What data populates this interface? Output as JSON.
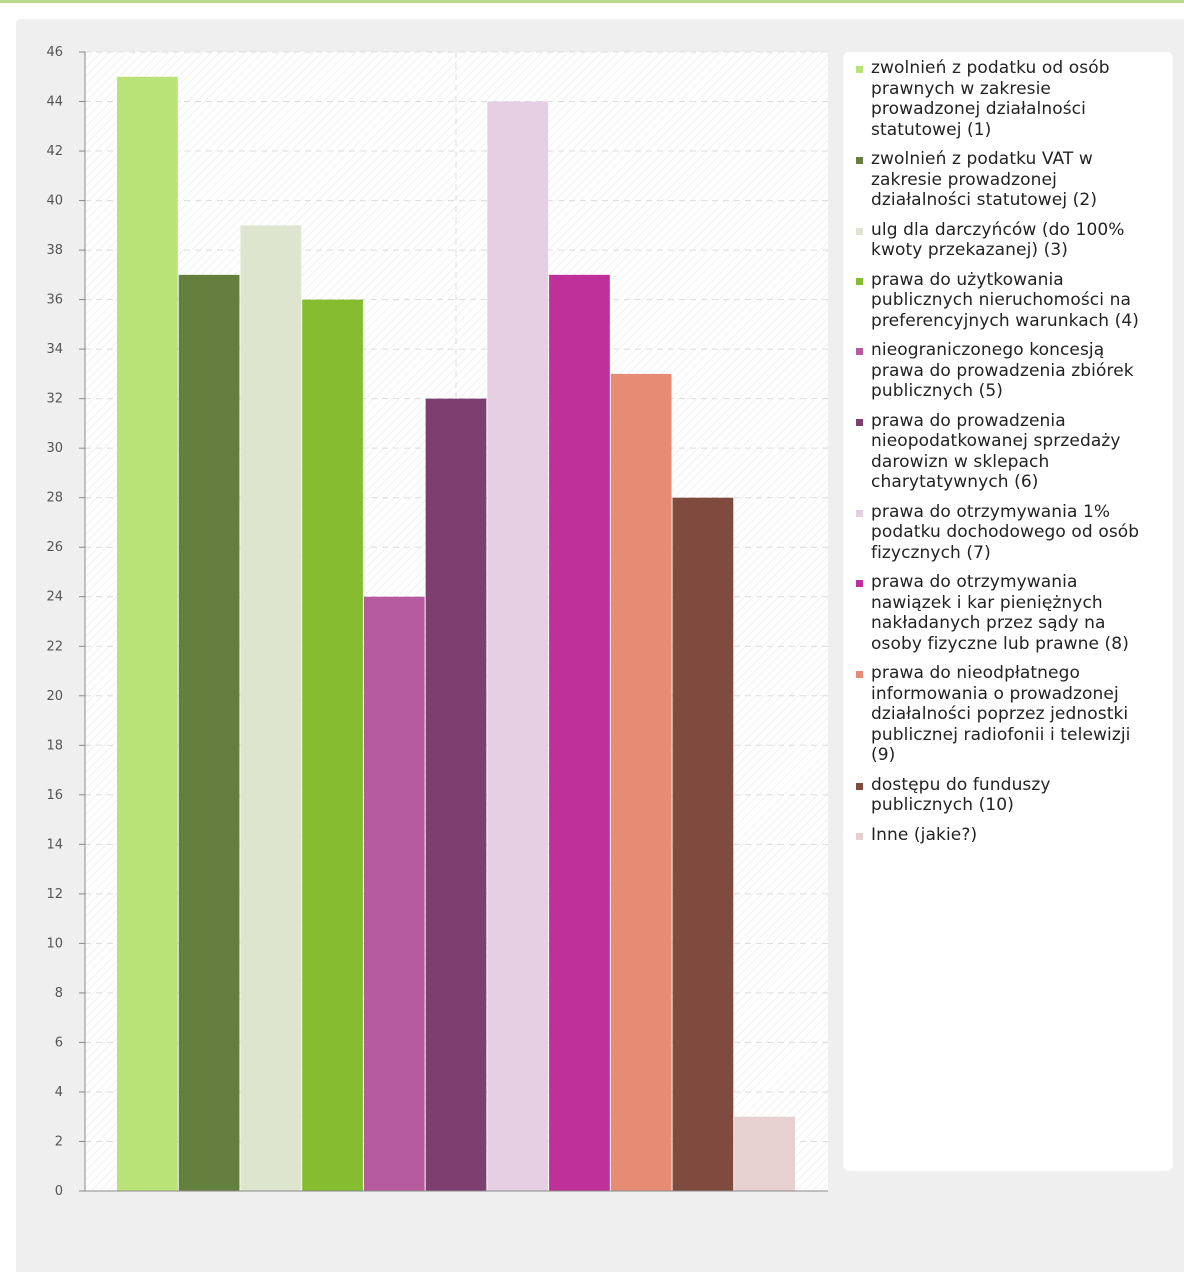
{
  "chart_data": {
    "type": "bar",
    "title": "",
    "xlabel": "",
    "ylabel": "",
    "ylim": [
      0,
      46
    ],
    "ytick_step": 2,
    "grid": true,
    "legend_position": "right",
    "categories": [
      "zwolnień z podatku od osób prawnych w zakresie prowadzonej działalności statutowej (1)",
      "zwolnień z podatku VAT w zakresie prowadzonej działalności statutowej (2)",
      "ulg dla darczyńców (do 100% kwoty przekazanej) (3)",
      "prawa do użytkowania publicznych nieruchomości na preferencyjnych warunkach (4)",
      "nieograniczonego koncesją prawa do prowadzenia zbiórek publicznych (5)",
      "prawa do prowadzenia nieopodatkowanej sprzedaży darowizn w sklepach charytatywnych (6)",
      "prawa do otrzymywania 1% podatku dochodowego od osób fizycznych (7)",
      "prawa do otrzymywania nawiązek i kar pieniężnych nakładanych przez sądy na osoby fizyczne lub prawne (8)",
      "prawa do nieodpłatnego informowania o prowadzonej działalności poprzez jednostki publicznej radiofonii i telewizji (9)",
      "dostępu do funduszy publicznych (10)",
      "Inne (jakie?)"
    ],
    "values": [
      45,
      37,
      39,
      36,
      24,
      32,
      44,
      37,
      33,
      28,
      3
    ],
    "colors": [
      "#b9e376",
      "#647f3e",
      "#dde5cf",
      "#86bd30",
      "#b75ba0",
      "#7c3f6f",
      "#e6cfe2",
      "#c0309a",
      "#e68b74",
      "#7e4b3e",
      "#e6d0d0"
    ]
  },
  "legend": {
    "items": [
      {
        "label": "zwolnień z podatku od osób prawnych w zakresie prowadzonej działalności statutowej (1)",
        "color": "#b9e376"
      },
      {
        "label": "zwolnień z podatku VAT w zakresie prowadzonej działalności statutowej (2)",
        "color": "#647f3e"
      },
      {
        "label": "ulg dla darczyńców (do 100% kwoty przekazanej) (3)",
        "color": "#dde5cf"
      },
      {
        "label": "prawa do użytkowania publicznych nieruchomości na preferencyjnych warunkach (4)",
        "color": "#86bd30"
      },
      {
        "label": "nieograniczonego koncesją prawa do prowadzenia zbiórek publicznych (5)",
        "color": "#b75ba0"
      },
      {
        "label": "prawa do prowadzenia nieopodatkowanej sprzedaży darowizn w sklepach charytatywnych (6)",
        "color": "#7c3f6f"
      },
      {
        "label": "prawa do otrzymywania 1% podatku dochodowego od osób fizycznych (7)",
        "color": "#e6cfe2"
      },
      {
        "label": "prawa do otrzymywania nawiązek i kar pieniężnych nakładanych przez sądy na osoby fizyczne lub prawne (8)",
        "color": "#c0309a"
      },
      {
        "label": "prawa do nieodpłatnego informowania o prowadzonej działalności poprzez jednostki publicznej radiofonii i telewizji (9)",
        "color": "#e68b74"
      },
      {
        "label": "dostępu do funduszy publicznych (10)",
        "color": "#7e4b3e"
      },
      {
        "label": "Inne (jakie?)",
        "color": "#e6d0d0"
      }
    ]
  }
}
